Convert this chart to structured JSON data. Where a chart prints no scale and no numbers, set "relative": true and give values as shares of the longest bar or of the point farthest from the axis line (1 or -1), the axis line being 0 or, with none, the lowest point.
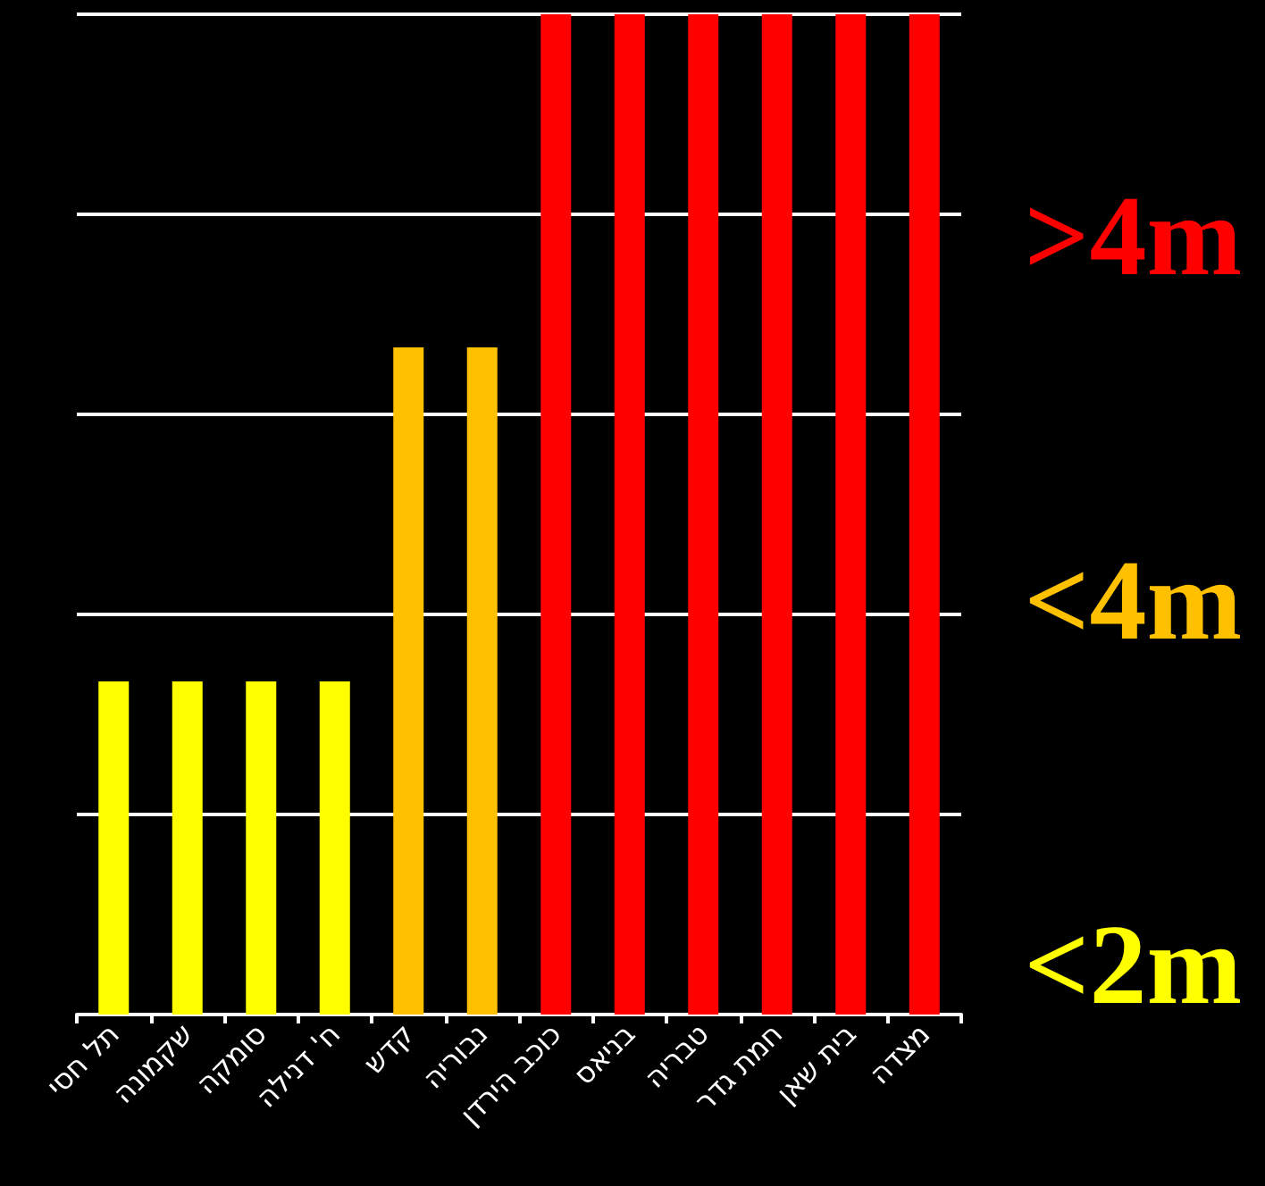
{
  "chart_data": {
    "type": "bar",
    "relative": true,
    "stacked": true,
    "grid": "y",
    "legend": "right",
    "categories": [
      "תל חסי",
      "שקמונה",
      "סומקה",
      "ח' דנילה",
      "קדש",
      "נבוריה",
      "כוכב הירדן",
      "בניאס",
      "טבריה",
      "חמת גדר",
      "בית שאן",
      "מצדה"
    ],
    "series": [
      {
        "name": "<2m",
        "color": "#ffff00",
        "values": [
          0.333,
          0.333,
          0.333,
          0.333,
          null,
          null,
          null,
          null,
          null,
          null,
          null,
          null
        ]
      },
      {
        "name": "<4m",
        "color": "#ffc000",
        "values": [
          null,
          null,
          null,
          null,
          0.667,
          0.667,
          null,
          null,
          null,
          null,
          null,
          null
        ]
      },
      {
        "name": ">4m",
        "color": "#ff0000",
        "values": [
          null,
          null,
          null,
          null,
          null,
          null,
          1,
          1,
          1,
          1,
          1,
          1
        ]
      }
    ]
  }
}
